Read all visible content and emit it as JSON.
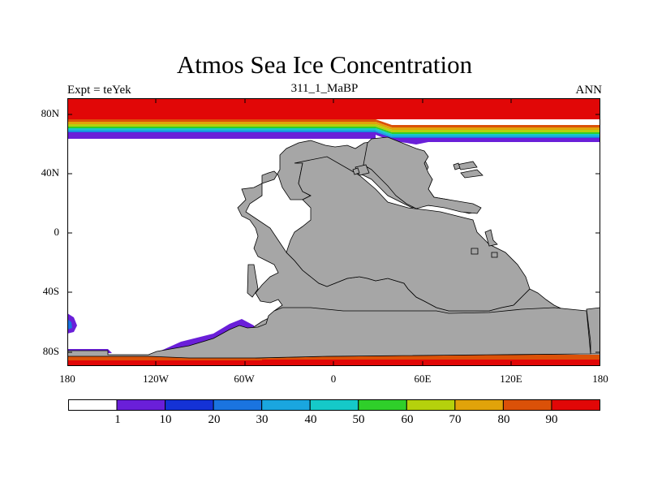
{
  "title": "Atmos Sea Ice Concentration",
  "left_label": "Expt = teYek",
  "center_label": "311_1_MaBP",
  "right_label": "ANN",
  "lat_labels": [
    "80N",
    "40N",
    "0",
    "40S",
    "80S"
  ],
  "lon_labels": [
    "180",
    "120W",
    "60W",
    "0",
    "60E",
    "120E",
    "180"
  ],
  "colorbar": {
    "colors": [
      "#ffffff",
      "#6a1fd9",
      "#1432d6",
      "#1a74e0",
      "#1aa6df",
      "#15c9c8",
      "#2fcf2a",
      "#b5d10c",
      "#e1a30a",
      "#db5108",
      "#e10707"
    ],
    "labels": [
      "1",
      "10",
      "20",
      "30",
      "40",
      "50",
      "60",
      "70",
      "80",
      "90"
    ]
  },
  "land_color": "#a6a6a6"
}
